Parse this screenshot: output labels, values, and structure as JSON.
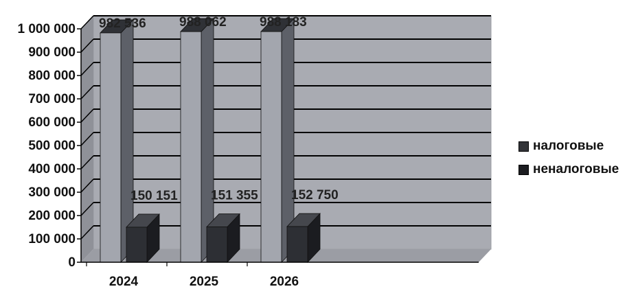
{
  "chart_data": {
    "type": "bar",
    "categories": [
      "2024",
      "2025",
      "2026"
    ],
    "series": [
      {
        "name": "налоговые",
        "values": [
          982536,
          988062,
          988183
        ],
        "labels": [
          "982 536",
          "988 062",
          "988 183"
        ],
        "color": "#a6a9b2"
      },
      {
        "name": "неналоговые",
        "values": [
          150151,
          151355,
          152750
        ],
        "labels": [
          "150 151",
          "151 355",
          "152 750"
        ],
        "color": "#2a2c31"
      }
    ],
    "yticks": [
      "0",
      "100 000",
      "200 000",
      "300 000",
      "400 000",
      "500 000",
      "600 000",
      "700 000",
      "800 000",
      "900 000",
      "1 000 000"
    ],
    "ylim": [
      0,
      1000000
    ],
    "grid": true,
    "legend_position": "right",
    "title": "",
    "xlabel": "",
    "ylabel": ""
  }
}
